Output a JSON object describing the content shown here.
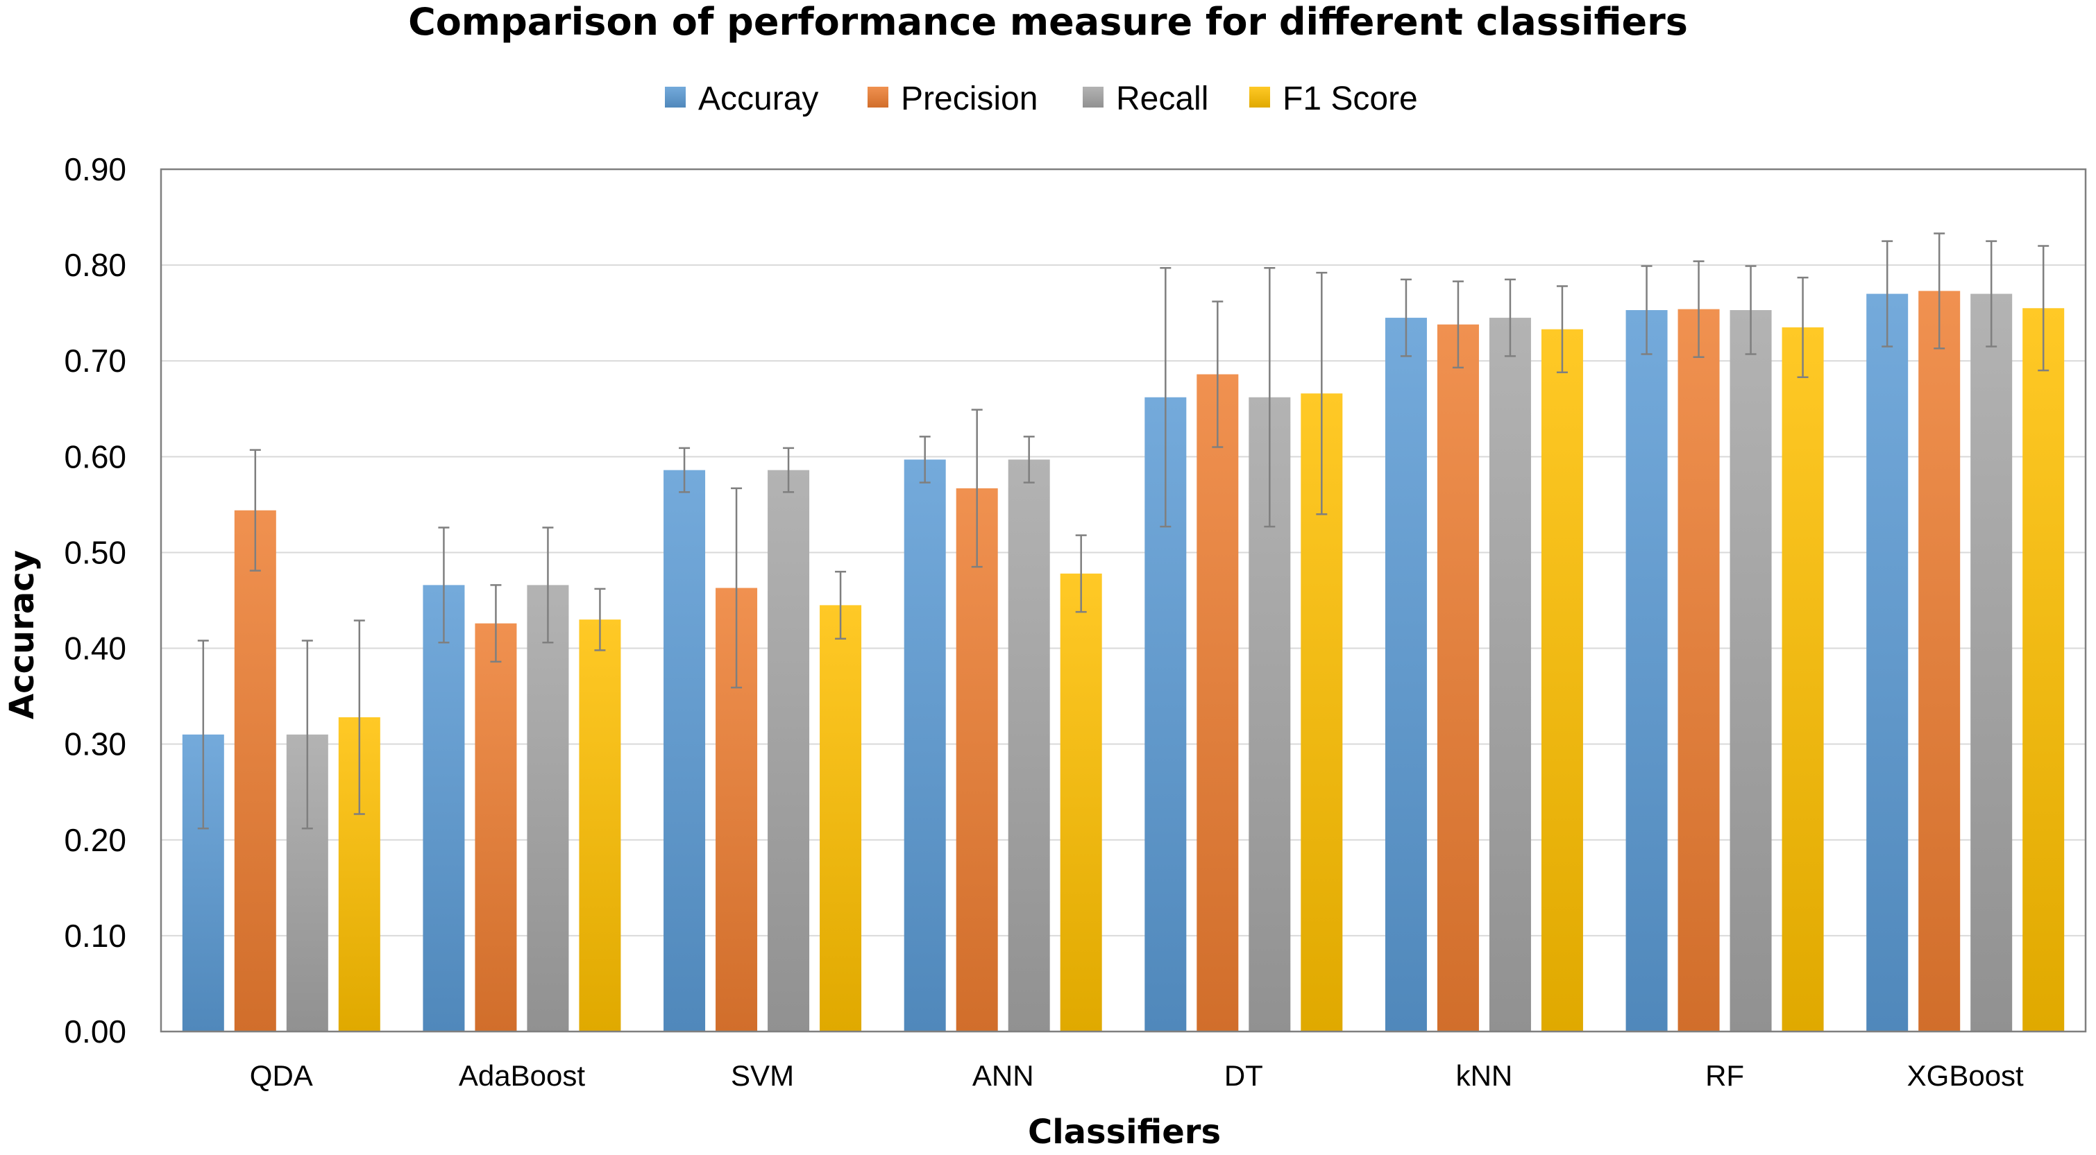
{
  "chart_data": {
    "type": "bar",
    "title": "Comparison of performance measure for different classifiers",
    "xlabel": "Classifiers",
    "ylabel": "Accuracy",
    "ylim": [
      0,
      0.9
    ],
    "yticks": [
      "0.00",
      "0.10",
      "0.20",
      "0.30",
      "0.40",
      "0.50",
      "0.60",
      "0.70",
      "0.80",
      "0.90"
    ],
    "grid": true,
    "legend_position": "top-center",
    "categories": [
      "QDA",
      "AdaBoost",
      "SVM",
      "ANN",
      "DT",
      "kNN",
      "RF",
      "XGBoost"
    ],
    "series": [
      {
        "name": "Accuray",
        "color": "#5b9bd5",
        "values": [
          0.31,
          0.466,
          0.586,
          0.597,
          0.662,
          0.745,
          0.753,
          0.77
        ],
        "errors": [
          0.098,
          0.06,
          0.023,
          0.024,
          0.135,
          0.04,
          0.046,
          0.055
        ]
      },
      {
        "name": "Precision",
        "color": "#ed7d31",
        "values": [
          0.544,
          0.426,
          0.463,
          0.567,
          0.686,
          0.738,
          0.754,
          0.773
        ],
        "errors": [
          0.063,
          0.04,
          0.104,
          0.082,
          0.076,
          0.045,
          0.05,
          0.06
        ]
      },
      {
        "name": "Recall",
        "color": "#a5a5a5",
        "values": [
          0.31,
          0.466,
          0.586,
          0.597,
          0.662,
          0.745,
          0.753,
          0.77
        ],
        "errors": [
          0.098,
          0.06,
          0.023,
          0.024,
          0.135,
          0.04,
          0.046,
          0.055
        ]
      },
      {
        "name": "F1 Score",
        "color": "#ffc000",
        "values": [
          0.328,
          0.43,
          0.445,
          0.478,
          0.666,
          0.733,
          0.735,
          0.755
        ],
        "errors": [
          0.101,
          0.032,
          0.035,
          0.04,
          0.126,
          0.045,
          0.052,
          0.065
        ]
      }
    ]
  }
}
